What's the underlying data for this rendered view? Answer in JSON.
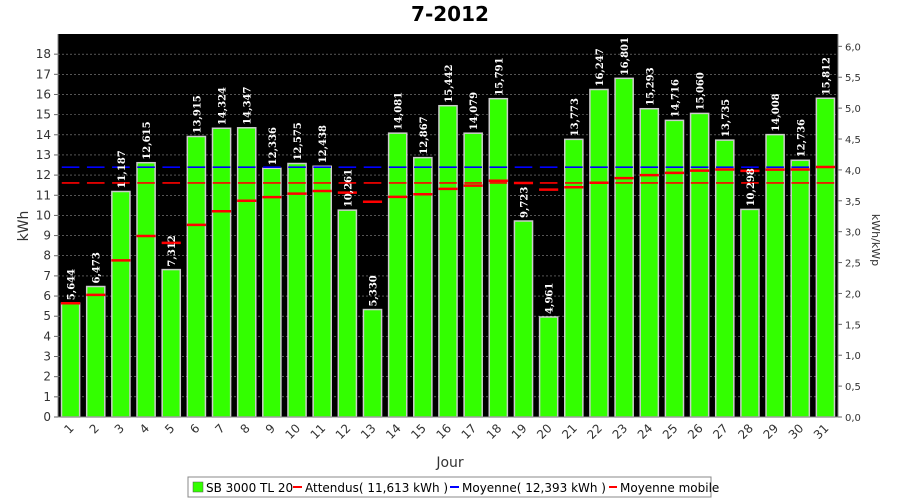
{
  "chart_data": {
    "type": "bar",
    "title": "7-2012",
    "xlabel": "Jour",
    "ylabel": "kWh",
    "y2label": "kWh/kWp",
    "ylim": [
      0,
      19
    ],
    "y2lim": [
      0,
      6.2
    ],
    "yticks": [
      "0",
      "1",
      "2",
      "3",
      "4",
      "5",
      "6",
      "7",
      "8",
      "9",
      "10",
      "11",
      "12",
      "13",
      "14",
      "15",
      "16",
      "17",
      "18"
    ],
    "y2ticks": [
      "0,0",
      "0,5",
      "1,0",
      "1,5",
      "2,0",
      "2,5",
      "3,0",
      "3,5",
      "4,0",
      "4,5",
      "5,0",
      "5,5",
      "6,0"
    ],
    "grid": true,
    "legend_position": "bottom",
    "categories": [
      "1",
      "2",
      "3",
      "4",
      "5",
      "6",
      "7",
      "8",
      "9",
      "10",
      "11",
      "12",
      "13",
      "14",
      "15",
      "16",
      "17",
      "18",
      "19",
      "20",
      "21",
      "22",
      "23",
      "24",
      "25",
      "26",
      "27",
      "28",
      "29",
      "30",
      "31"
    ],
    "series": [
      {
        "name": "SB 3000 TL 20",
        "kind": "bar",
        "color": "#33ff00",
        "values": [
          5.644,
          6.473,
          11.187,
          12.615,
          7.312,
          13.915,
          14.324,
          14.347,
          12.336,
          12.575,
          12.438,
          10.261,
          5.33,
          14.081,
          12.867,
          15.442,
          14.079,
          15.791,
          9.723,
          4.961,
          13.773,
          16.247,
          16.801,
          15.293,
          14.716,
          15.06,
          13.735,
          10.298,
          14.008,
          12.736,
          15.812
        ],
        "labels": [
          "5,644",
          "6,473",
          "11,187",
          "12,615",
          "7,312",
          "13,915",
          "14,324",
          "14,347",
          "12,336",
          "12,575",
          "12,438",
          "10,261",
          "5,330",
          "14,081",
          "12,867",
          "15,442",
          "14,079",
          "15,791",
          "9,723",
          "4,961",
          "13,773",
          "16,247",
          "16,801",
          "15,293",
          "14,716",
          "15,060",
          "13,735",
          "10,298",
          "14,008",
          "12,736",
          "15,812"
        ]
      },
      {
        "name": "Attendus( 11,613 kWh )",
        "kind": "hline",
        "color": "#ff0000",
        "value": 11.613
      },
      {
        "name": "Moyenne( 12,393 kWh )",
        "kind": "hline",
        "color": "#0000ff",
        "value": 12.393
      },
      {
        "name": "Moyenne mobile",
        "kind": "marker",
        "color": "#ff0000",
        "values": [
          5.64,
          6.06,
          7.77,
          8.98,
          8.64,
          9.53,
          10.21,
          10.73,
          10.91,
          11.08,
          11.21,
          11.13,
          10.68,
          10.92,
          11.05,
          11.32,
          11.48,
          11.72,
          11.61,
          11.28,
          11.4,
          11.62,
          11.85,
          12.0,
          12.11,
          12.22,
          12.28,
          12.21,
          12.27,
          12.28,
          12.4
        ]
      }
    ]
  },
  "colors": {
    "plot_background": "#000000",
    "grid": "#888888",
    "bar": "#33ff00",
    "bar_edge": "#cccccc"
  }
}
